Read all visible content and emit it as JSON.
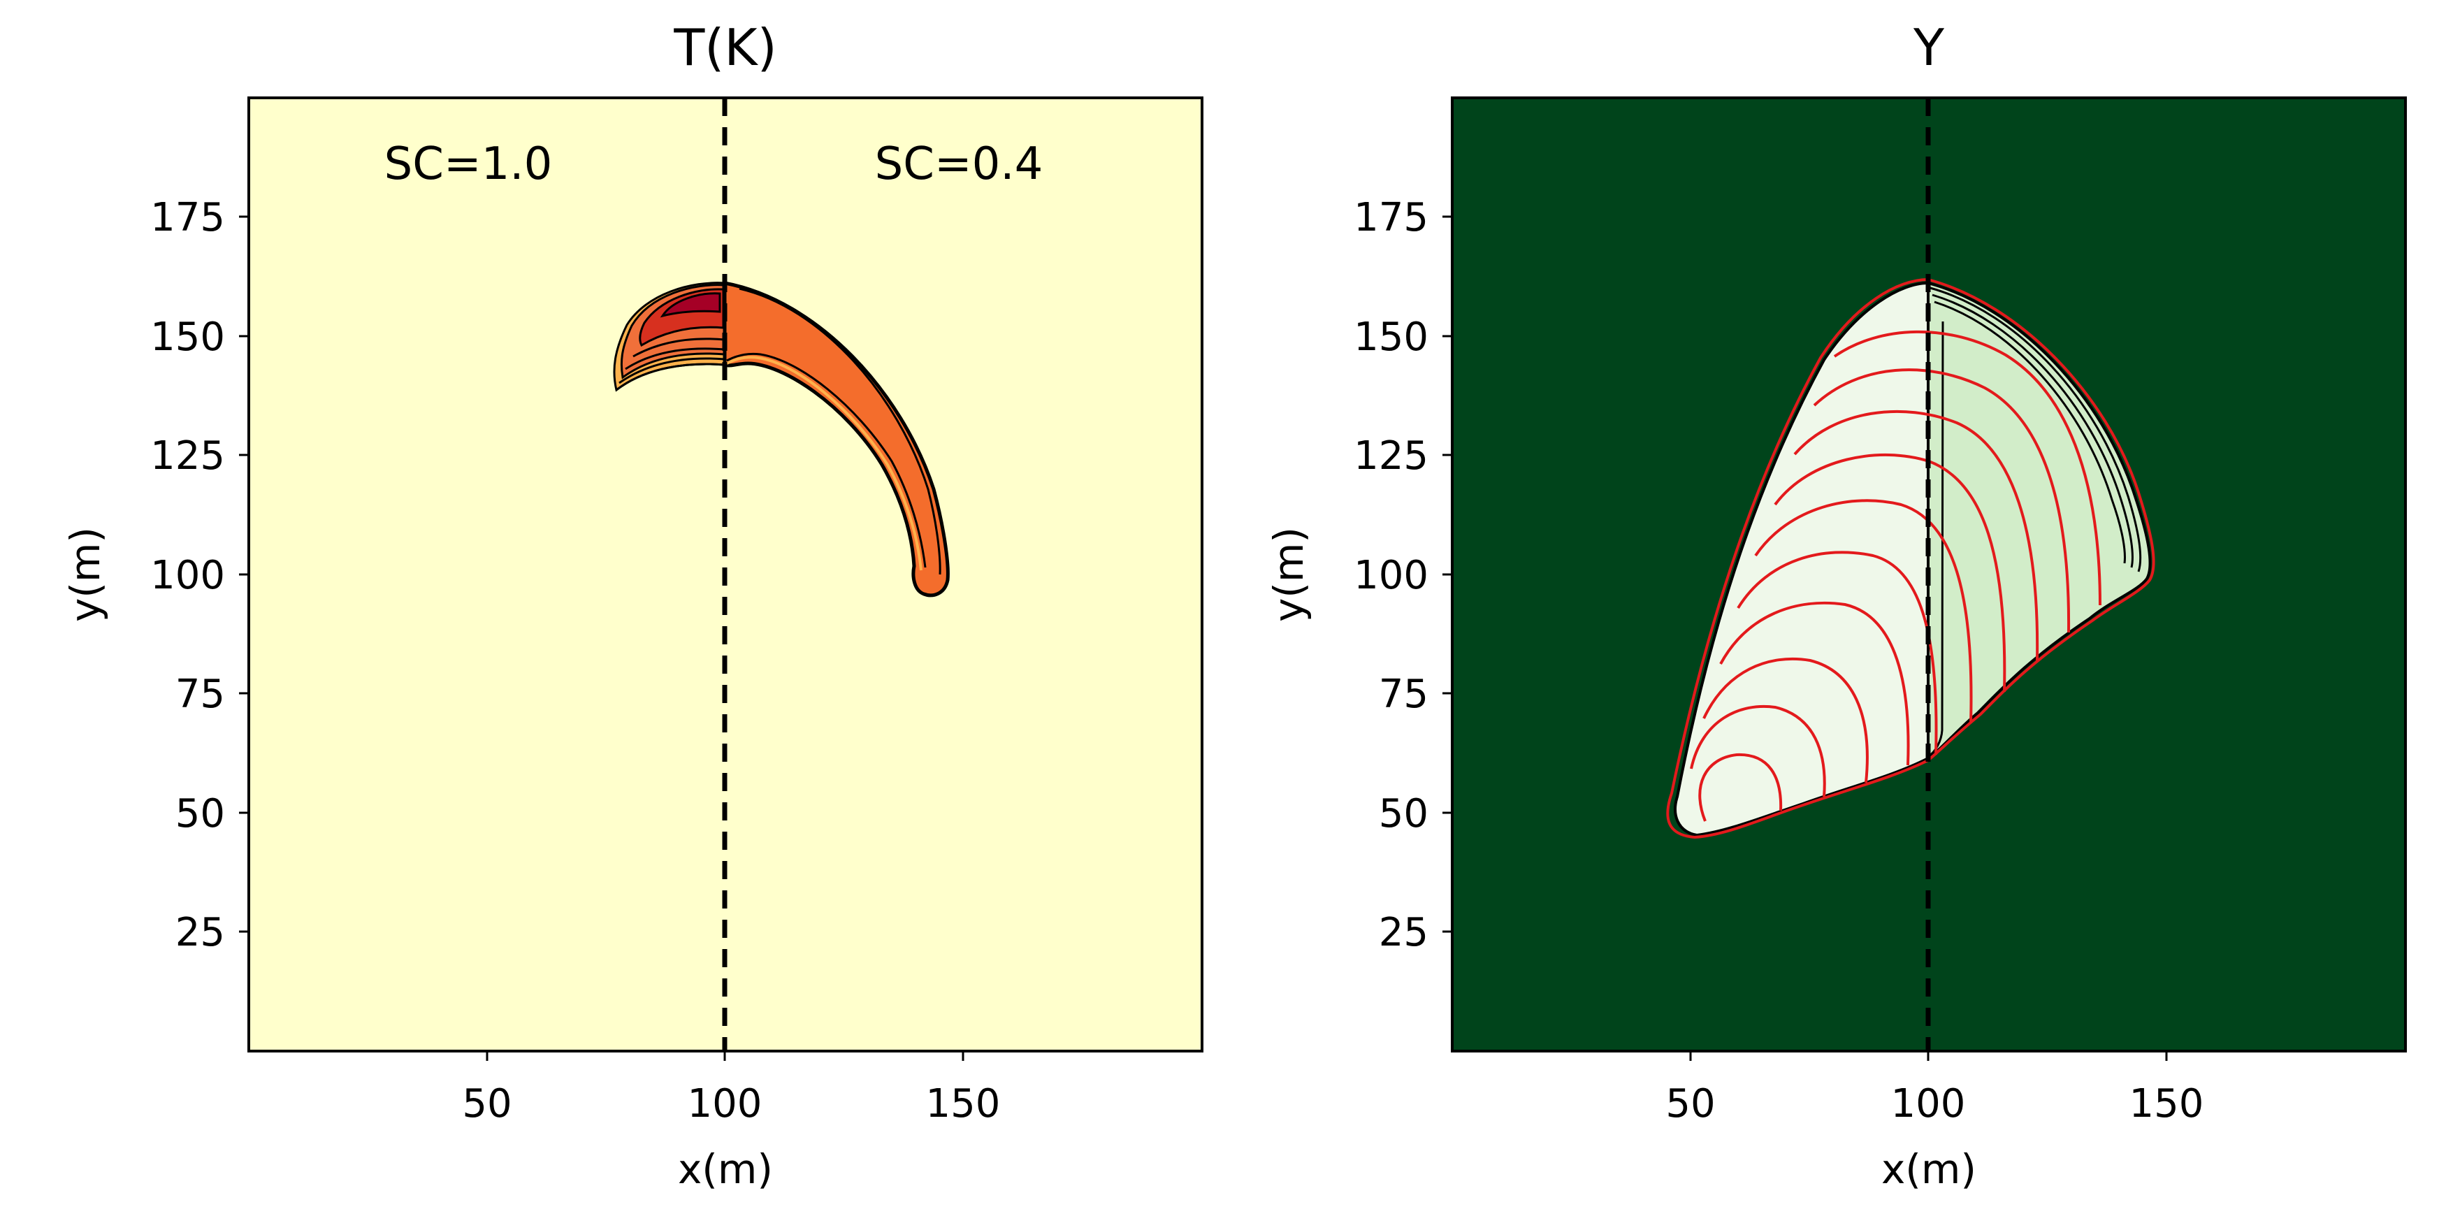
{
  "chart_data": [
    {
      "type": "contour",
      "title": "T(K)",
      "xlabel": "x(m)",
      "ylabel": "y(m)",
      "xlim": [
        0,
        200
      ],
      "ylim": [
        0,
        200
      ],
      "xticks": [
        50,
        100,
        150
      ],
      "yticks": [
        25,
        50,
        75,
        100,
        125,
        150,
        175
      ],
      "grid": false,
      "divider_x": 100,
      "annotations": [
        {
          "text": "SC=1.0",
          "x": 46,
          "y": 184
        },
        {
          "text": "SC=0.4",
          "x": 149,
          "y": 184
        }
      ],
      "colors": {
        "background": "#ffffcc",
        "front_right": "#f46d2c",
        "front_left": "#e65b2a",
        "front_core": "#a50026",
        "contour_band": "#feb24c",
        "contour_line": "#000000"
      }
    },
    {
      "type": "contour",
      "title": "Y",
      "xlabel": "x(m)",
      "ylabel": "y(m)",
      "xlim": [
        0,
        200
      ],
      "ylim": [
        0,
        200
      ],
      "xticks": [
        50,
        100,
        150
      ],
      "yticks": [
        25,
        50,
        75,
        100,
        125,
        150,
        175
      ],
      "grid": false,
      "divider_x": 100,
      "colors": {
        "background": "#00441b",
        "burned_left": "#eff8ea",
        "burned_right": "#d2edc9",
        "outline": "#000000",
        "front_isolines": "#e31a1c"
      }
    }
  ]
}
